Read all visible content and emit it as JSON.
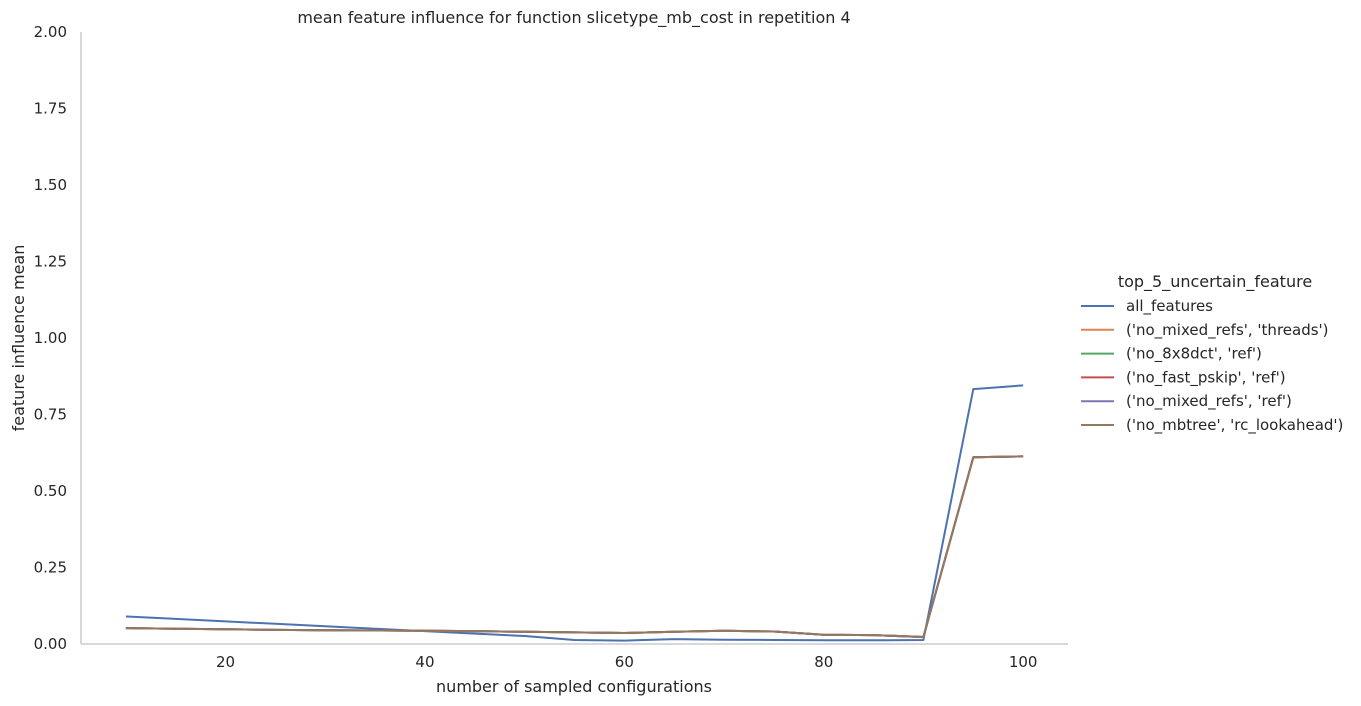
{
  "chart_data": {
    "type": "line",
    "title": "mean feature influence for function slicetype_mb_cost in repetition 4",
    "xlabel": "number of sampled configurations",
    "ylabel": "feature influence mean",
    "xlim": [
      5.5,
      104.5
    ],
    "ylim": [
      0,
      2
    ],
    "xticks": [
      20,
      40,
      60,
      80,
      100
    ],
    "yticks": [
      "0.00",
      "0.25",
      "0.50",
      "0.75",
      "1.00",
      "1.25",
      "1.50",
      "1.75",
      "2.00"
    ],
    "grid": false,
    "legend_title": "top_5_uncertain_feature",
    "legend_position": "right",
    "x": [
      10,
      15,
      20,
      25,
      30,
      35,
      40,
      45,
      50,
      55,
      60,
      65,
      70,
      75,
      80,
      85,
      90,
      95,
      100
    ],
    "series": [
      {
        "name": "all_features",
        "color": "#4c72b0",
        "values": [
          0.09,
          0.082,
          0.074,
          0.066,
          0.058,
          0.05,
          0.042,
          0.034,
          0.026,
          0.013,
          0.011,
          0.016,
          0.014,
          0.013,
          0.012,
          0.012,
          0.013,
          0.833,
          0.845
        ]
      },
      {
        "name": "('no_mixed_refs', 'threads')",
        "color": "#dd8452",
        "values": [
          0.052,
          0.05,
          0.048,
          0.046,
          0.045,
          0.044,
          0.043,
          0.042,
          0.04,
          0.038,
          0.036,
          0.04,
          0.043,
          0.041,
          0.03,
          0.029,
          0.023,
          0.61,
          0.613
        ]
      },
      {
        "name": "('no_8x8dct', 'ref')",
        "color": "#55a868",
        "values": [
          0.052,
          0.05,
          0.048,
          0.046,
          0.045,
          0.044,
          0.043,
          0.042,
          0.04,
          0.038,
          0.036,
          0.04,
          0.043,
          0.041,
          0.03,
          0.029,
          0.023,
          0.61,
          0.613
        ]
      },
      {
        "name": "('no_fast_pskip', 'ref')",
        "color": "#c44e52",
        "values": [
          0.052,
          0.05,
          0.048,
          0.046,
          0.045,
          0.044,
          0.043,
          0.042,
          0.04,
          0.038,
          0.036,
          0.04,
          0.043,
          0.041,
          0.03,
          0.029,
          0.023,
          0.61,
          0.613
        ]
      },
      {
        "name": "('no_mixed_refs', 'ref')",
        "color": "#8172b3",
        "values": [
          0.052,
          0.05,
          0.048,
          0.046,
          0.045,
          0.044,
          0.043,
          0.042,
          0.04,
          0.038,
          0.036,
          0.04,
          0.043,
          0.041,
          0.03,
          0.029,
          0.023,
          0.61,
          0.613
        ]
      },
      {
        "name": "('no_mbtree', 'rc_lookahead')",
        "color": "#937860",
        "values": [
          0.052,
          0.05,
          0.048,
          0.046,
          0.045,
          0.044,
          0.043,
          0.042,
          0.04,
          0.038,
          0.036,
          0.04,
          0.043,
          0.041,
          0.03,
          0.029,
          0.023,
          0.61,
          0.613
        ]
      }
    ]
  }
}
